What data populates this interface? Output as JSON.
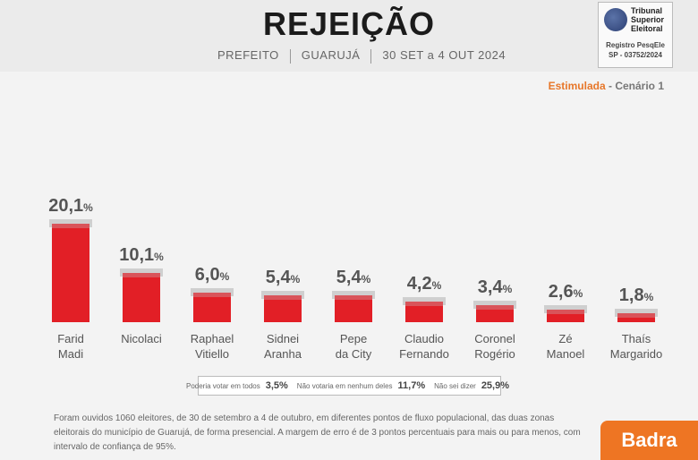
{
  "header": {
    "title": "REJEIÇÃO",
    "office": "PREFEITO",
    "city": "GUARUJÁ",
    "period": "30 SET a 4 OUT 2024"
  },
  "tse": {
    "name_line1": "Tribunal",
    "name_line2": "Superior",
    "name_line3": "Eleitoral",
    "registry_label": "Registro PesqEle",
    "registry_code": "SP - 03752/2024"
  },
  "scenario": {
    "type": "Estimulada",
    "separator": " - ",
    "name": "Cenário 1"
  },
  "chart_data": {
    "type": "bar",
    "title": "REJEIÇÃO",
    "categories": [
      "Farid Madi",
      "Nicolaci",
      "Raphael Vitiello",
      "Sidnei Aranha",
      "Pepe da City",
      "Claudio Fernando",
      "Coronel Rogério",
      "Zé Manoel",
      "Thaís Margarido"
    ],
    "category_lines": [
      [
        "Farid",
        "Madi"
      ],
      [
        "Nicolaci",
        ""
      ],
      [
        "Raphael",
        "Vitiello"
      ],
      [
        "Sidnei",
        "Aranha"
      ],
      [
        "Pepe",
        "da City"
      ],
      [
        "Claudio",
        "Fernando"
      ],
      [
        "Coronel",
        "Rogério"
      ],
      [
        "Zé",
        "Manoel"
      ],
      [
        "Thaís",
        "Margarido"
      ]
    ],
    "values": [
      20.1,
      10.1,
      6.0,
      5.4,
      5.4,
      4.2,
      3.4,
      2.6,
      1.8
    ],
    "value_labels": [
      "20,1",
      "10,1",
      "6,0",
      "5,4",
      "5,4",
      "4,2",
      "3,4",
      "2,6",
      "1,8"
    ],
    "unit": "%",
    "ylim": [
      0,
      20.1
    ],
    "color": "#e21f26"
  },
  "legend": {
    "items": [
      {
        "label": "Poderia votar em todos",
        "value": "3,5%"
      },
      {
        "label": "Não votaria em nenhum deles",
        "value": "11,7%"
      },
      {
        "label": "Não sei dizer",
        "value": "25,9%"
      }
    ]
  },
  "footnote": "Foram ouvidos 1060 eleitores, de 30 de setembro a 4 de outubro, em diferentes pontos de fluxo populacional, das duas zonas eleitorais do município de Guarujá, de forma presencial. A margem de erro é de 3 pontos percentuais para mais ou para menos, com intervalo de confiança de 95%.",
  "brand": "Badra"
}
